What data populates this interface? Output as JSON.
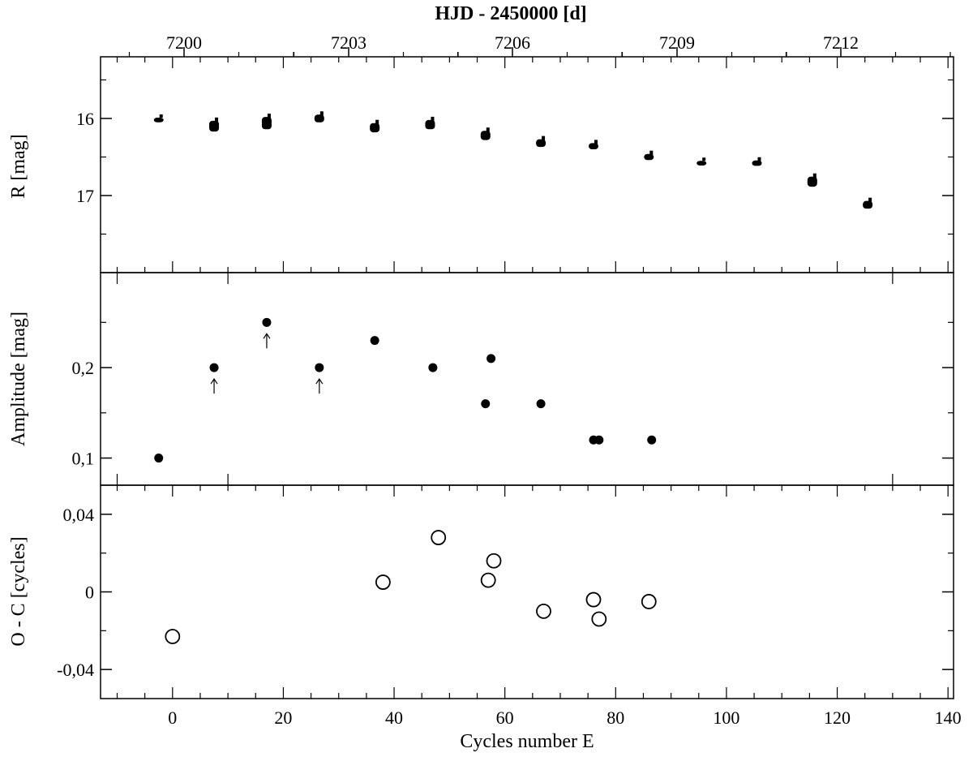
{
  "chart_data": [
    {
      "panel": "top",
      "type": "scatter",
      "x_top_label": "HJD - 2450000 [d]",
      "x_top_ticks": [
        "7200",
        "7203",
        "7206",
        "7209",
        "7212"
      ],
      "ylabel": "R [mag]",
      "y_ticks": [
        "16",
        "17"
      ],
      "ylim": [
        15.2,
        18.0
      ],
      "y_inverted": true,
      "clusters": [
        {
          "x": -2.5,
          "y_center": 16.02,
          "spread": 0.06
        },
        {
          "x": 7.5,
          "y_center": 16.1,
          "spread": 0.14
        },
        {
          "x": 17.0,
          "y_center": 16.06,
          "spread": 0.16
        },
        {
          "x": 26.5,
          "y_center": 16.0,
          "spread": 0.1
        },
        {
          "x": 36.5,
          "y_center": 16.12,
          "spread": 0.12
        },
        {
          "x": 46.5,
          "y_center": 16.08,
          "spread": 0.12
        },
        {
          "x": 56.5,
          "y_center": 16.22,
          "spread": 0.12
        },
        {
          "x": 66.5,
          "y_center": 16.32,
          "spread": 0.1
        },
        {
          "x": 76.0,
          "y_center": 16.36,
          "spread": 0.08
        },
        {
          "x": 86.0,
          "y_center": 16.5,
          "spread": 0.08
        },
        {
          "x": 95.5,
          "y_center": 16.58,
          "spread": 0.06
        },
        {
          "x": 105.5,
          "y_center": 16.58,
          "spread": 0.07
        },
        {
          "x": 115.5,
          "y_center": 16.82,
          "spread": 0.13
        },
        {
          "x": 125.5,
          "y_center": 17.12,
          "spread": 0.1
        }
      ]
    },
    {
      "panel": "middle",
      "type": "scatter",
      "ylabel": "Amplitude [mag]",
      "y_ticks": [
        "0,1",
        "0,2"
      ],
      "ylim": [
        0.07,
        0.305
      ],
      "points": [
        {
          "x": -2.5,
          "y": 0.1
        },
        {
          "x": 7.5,
          "y": 0.2
        },
        {
          "x": 17.0,
          "y": 0.25
        },
        {
          "x": 26.5,
          "y": 0.2
        },
        {
          "x": 36.5,
          "y": 0.23
        },
        {
          "x": 47.0,
          "y": 0.2
        },
        {
          "x": 56.5,
          "y": 0.16
        },
        {
          "x": 57.5,
          "y": 0.21
        },
        {
          "x": 66.5,
          "y": 0.16
        },
        {
          "x": 76.0,
          "y": 0.12
        },
        {
          "x": 77.0,
          "y": 0.12
        },
        {
          "x": 86.5,
          "y": 0.12
        }
      ],
      "arrows_at_x": [
        7.5,
        17.0,
        26.5
      ]
    },
    {
      "panel": "bottom",
      "type": "scatter",
      "xlabel": "Cycles number E",
      "x_ticks": [
        "0",
        "20",
        "40",
        "60",
        "80",
        "100",
        "120",
        "140"
      ],
      "xlim": [
        -13,
        141
      ],
      "ylabel": "O - C [cycles]",
      "y_ticks": [
        "-0,04",
        "0",
        "0,04"
      ],
      "ylim": [
        -0.055,
        0.055
      ],
      "points": [
        {
          "x": 0,
          "y": -0.023
        },
        {
          "x": 38,
          "y": 0.005
        },
        {
          "x": 48,
          "y": 0.028
        },
        {
          "x": 57,
          "y": 0.006
        },
        {
          "x": 58,
          "y": 0.016
        },
        {
          "x": 67,
          "y": -0.01
        },
        {
          "x": 76,
          "y": -0.004
        },
        {
          "x": 77,
          "y": -0.014
        },
        {
          "x": 86,
          "y": -0.005
        }
      ]
    }
  ]
}
